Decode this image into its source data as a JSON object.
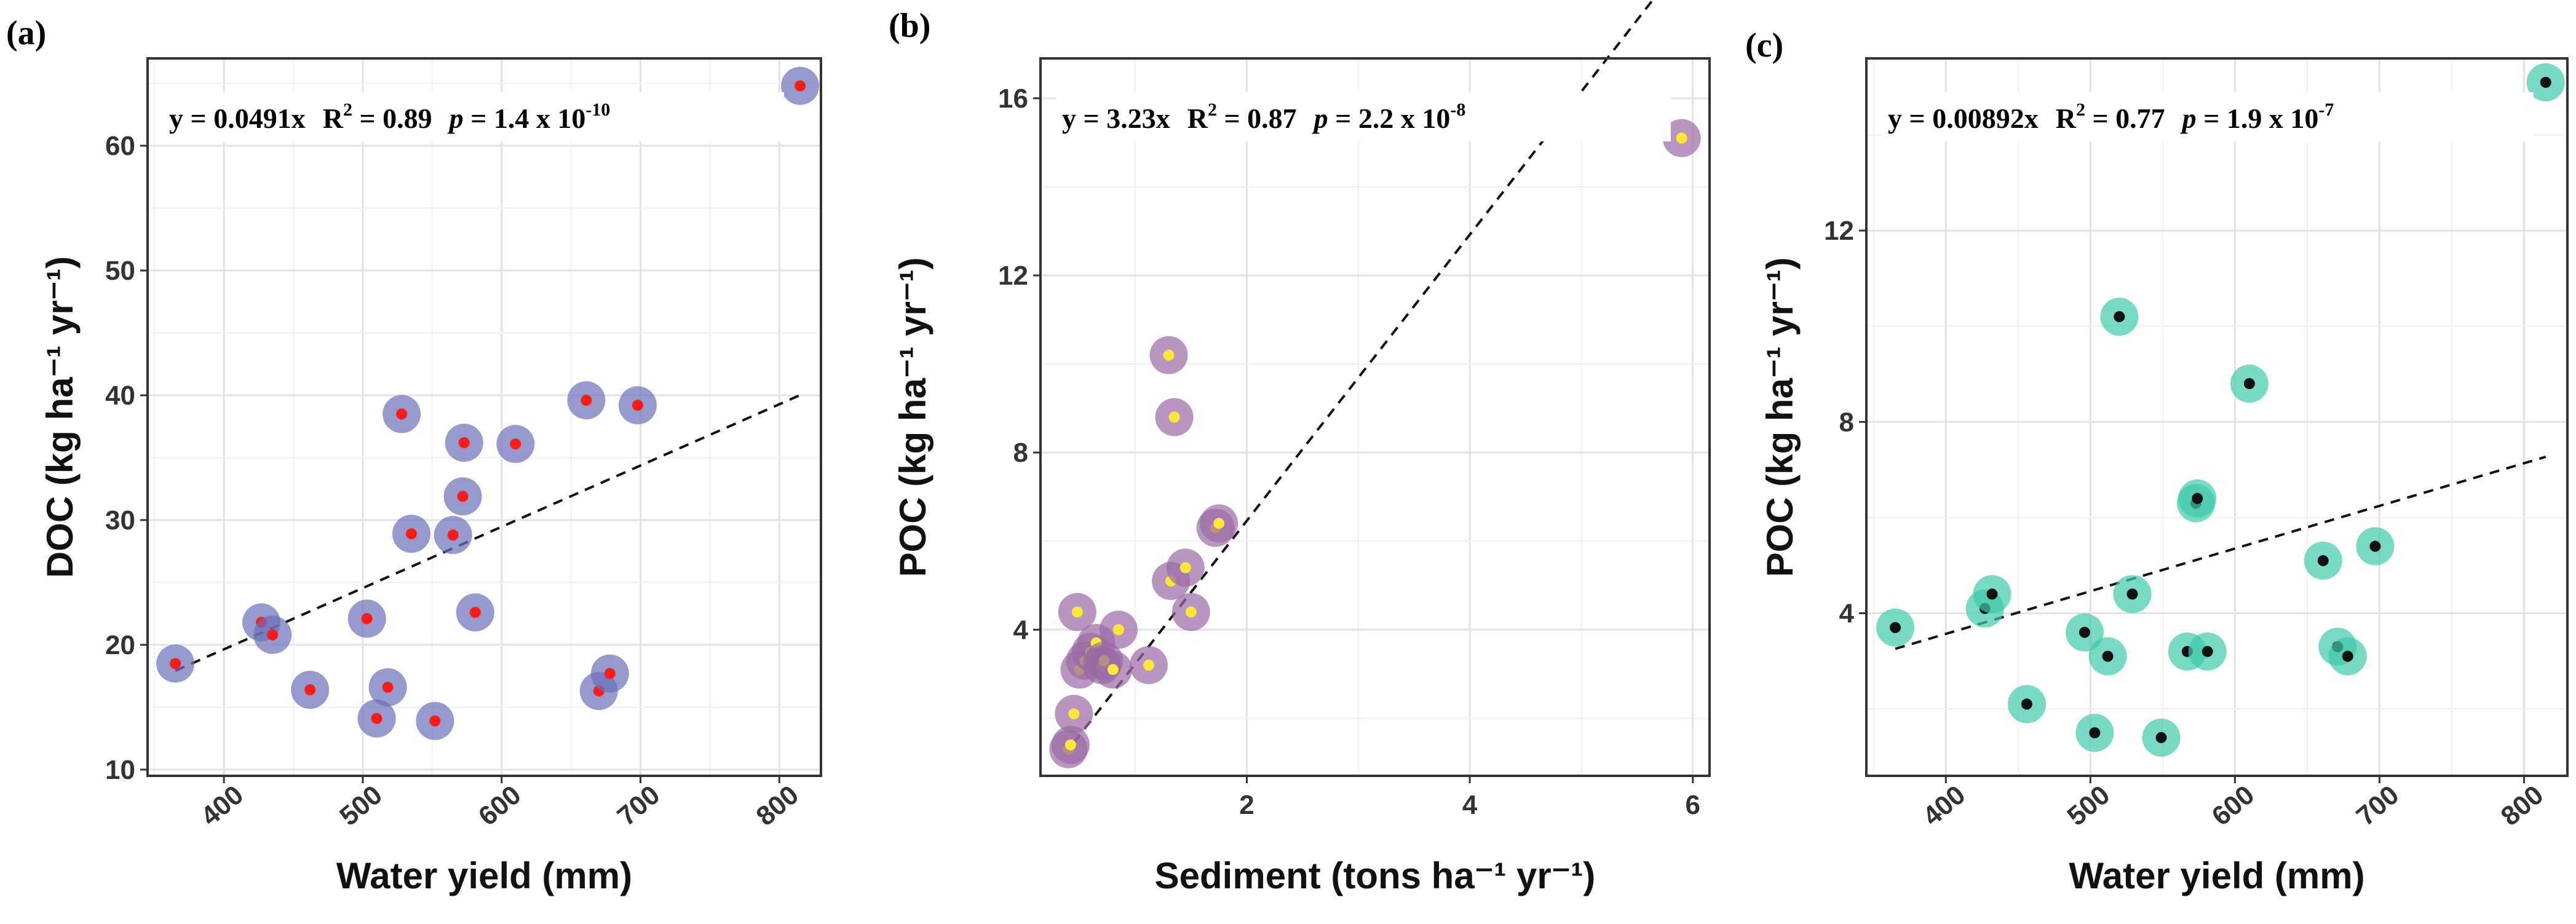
{
  "chart_data": [
    {
      "type": "scatter",
      "panel_label": "(a)",
      "xlabel": "Water yield (mm)",
      "ylabel": "DOC (kg ha⁻¹ yr⁻¹)",
      "xlim": [
        345,
        830
      ],
      "ylim": [
        9.5,
        67
      ],
      "xticks": [
        400,
        500,
        600,
        700,
        800
      ],
      "yticks": [
        10,
        20,
        30,
        40,
        50,
        60
      ],
      "fit": {
        "slope": 0.0491,
        "x_range": [
          365,
          815
        ]
      },
      "equation": {
        "y": "y = 0.0491x",
        "r2_label": "R",
        "r2_sup": "2",
        "r2_val": " = 0.89",
        "p_label": "p",
        "p_val": " = 1.4 x 10",
        "p_exp": "-10"
      },
      "style": {
        "fill": "#6a6fb8",
        "dot": "#ff1a1a"
      },
      "x": [
        365,
        427,
        435,
        462,
        503,
        510,
        518,
        528,
        535,
        552,
        565,
        572,
        573,
        581,
        610,
        661,
        670,
        678,
        698,
        815
      ],
      "y": [
        18.5,
        21.8,
        20.8,
        16.4,
        22.1,
        14.1,
        16.6,
        38.5,
        28.9,
        13.9,
        28.8,
        31.9,
        36.2,
        22.6,
        36.1,
        39.6,
        16.3,
        17.7,
        39.2,
        64.8
      ]
    },
    {
      "type": "scatter",
      "panel_label": "(b)",
      "xlabel": "Sediment (tons ha⁻¹ yr⁻¹)",
      "ylabel": "POC (kg ha⁻¹ yr⁻¹)",
      "xlim": [
        0.15,
        6.15
      ],
      "ylim": [
        0.7,
        16.9
      ],
      "xticks": [
        2,
        4,
        6
      ],
      "yticks": [
        4,
        8,
        12,
        16
      ],
      "fit": {
        "slope": 3.23,
        "x_range": [
          0.45,
          5.95
        ]
      },
      "equation": {
        "y": "y = 3.23x",
        "r2_label": "R",
        "r2_sup": "2",
        "r2_val": " = 0.87",
        "p_label": "p",
        "p_val": " = 2.2 x 10",
        "p_exp": "-8"
      },
      "style": {
        "fill": "#9a6aa4",
        "dot": "#ffe63a"
      },
      "x": [
        0.4,
        0.42,
        0.45,
        0.48,
        0.5,
        0.55,
        0.6,
        0.65,
        0.7,
        0.72,
        0.8,
        0.85,
        1.12,
        1.3,
        1.32,
        1.35,
        1.45,
        1.5,
        1.72,
        1.75,
        5.9
      ],
      "y": [
        1.3,
        1.4,
        2.1,
        4.4,
        3.1,
        3.3,
        3.5,
        3.7,
        3.2,
        3.3,
        3.1,
        4.0,
        3.2,
        10.2,
        5.1,
        8.8,
        5.4,
        4.4,
        6.3,
        6.4,
        15.1
      ]
    },
    {
      "type": "scatter",
      "panel_label": "(c)",
      "xlabel": "Water yield (mm)",
      "ylabel": "POC (kg ha⁻¹ yr⁻¹)",
      "xlim": [
        345,
        830
      ],
      "ylim": [
        0.6,
        15.6
      ],
      "xticks": [
        400,
        500,
        600,
        700,
        800
      ],
      "yticks": [
        4,
        8,
        12
      ],
      "fit": {
        "slope": 0.00892,
        "x_range": [
          365,
          815
        ]
      },
      "equation": {
        "y": "y = 0.00892x",
        "r2_label": "R",
        "r2_sup": "2",
        "r2_val": " = 0.77",
        "p_label": "p",
        "p_val": " = 1.9 x 10",
        "p_exp": "-7"
      },
      "style": {
        "fill": "#3ec9ad",
        "dot": "#111111"
      },
      "x": [
        365,
        427,
        432,
        456,
        496,
        503,
        512,
        520,
        529,
        549,
        567,
        573,
        574,
        581,
        610,
        661,
        671,
        678,
        697,
        815
      ],
      "y": [
        3.7,
        4.1,
        4.4,
        2.1,
        3.6,
        1.5,
        3.1,
        10.2,
        4.4,
        1.4,
        3.2,
        6.3,
        6.4,
        3.2,
        8.8,
        5.1,
        3.3,
        3.1,
        5.4,
        15.1
      ]
    }
  ]
}
